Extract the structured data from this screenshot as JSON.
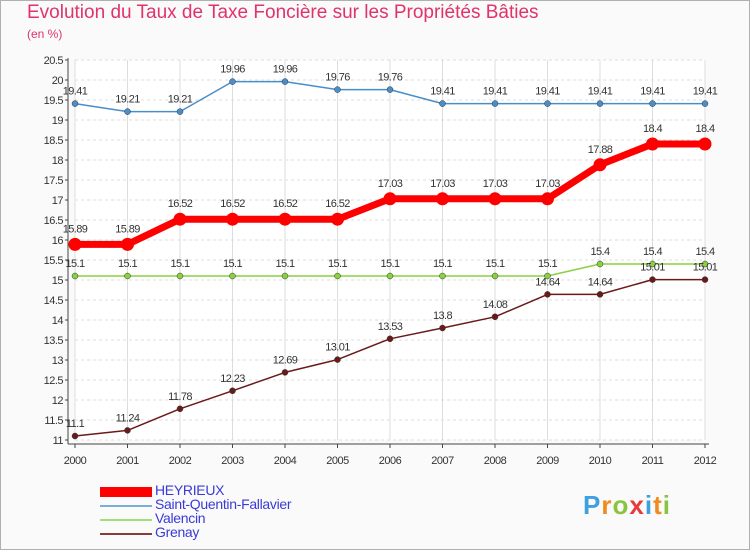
{
  "chart_data": {
    "type": "line",
    "title": "Evolution du Taux de Taxe Foncière sur les Propriétés Bâties",
    "ylabel": "(en %)",
    "xlabel": "",
    "ylim": [
      11,
      20.5
    ],
    "yticks": [
      "11",
      "11.5",
      "12",
      "12.5",
      "13",
      "13.5",
      "14",
      "14.5",
      "15",
      "15.5",
      "16",
      "16.5",
      "17",
      "17.5",
      "18",
      "18.5",
      "19",
      "19.5",
      "20",
      "20.5"
    ],
    "categories": [
      "2000",
      "2001",
      "2002",
      "2003",
      "2004",
      "2005",
      "2006",
      "2007",
      "2008",
      "2009",
      "2010",
      "2011",
      "2012"
    ],
    "series": [
      {
        "name": "Saint-Quentin-Fallavier",
        "color": "#4a8ec9",
        "values": [
          19.41,
          19.21,
          19.21,
          19.96,
          19.96,
          19.76,
          19.76,
          19.41,
          19.41,
          19.41,
          19.41,
          19.41,
          19.41
        ]
      },
      {
        "name": "Valencin",
        "color": "#8ad140",
        "values": [
          15.1,
          15.1,
          15.1,
          15.1,
          15.1,
          15.1,
          15.1,
          15.1,
          15.1,
          15.1,
          15.4,
          15.4,
          15.4
        ]
      },
      {
        "name": "Grenay",
        "color": "#6b1a1a",
        "values": [
          11.1,
          11.24,
          11.78,
          12.23,
          12.69,
          13.01,
          13.53,
          13.8,
          14.08,
          14.64,
          14.64,
          15.01,
          15.01
        ]
      },
      {
        "name": "HEYRIEUX",
        "color": "#ff0000",
        "values": [
          15.89,
          15.89,
          16.52,
          16.52,
          16.52,
          16.52,
          17.03,
          17.03,
          17.03,
          17.03,
          17.88,
          18.4,
          18.4
        ]
      }
    ],
    "legend": [
      "HEYRIEUX",
      "Saint-Quentin-Fallavier",
      "Valencin",
      "Grenay"
    ]
  },
  "legend_colors": [
    "#ff0000",
    "#7aaed6",
    "#a3e07a",
    "#8a3a3a"
  ],
  "logo": {
    "letters": [
      "P",
      "r",
      "o",
      "x",
      "i",
      "t",
      "i"
    ],
    "colors": [
      "#3fa0e0",
      "#f08a1a",
      "#8ac43f",
      "#e83a3a",
      "#3fa0e0",
      "#f08a1a",
      "#8ac43f"
    ]
  }
}
